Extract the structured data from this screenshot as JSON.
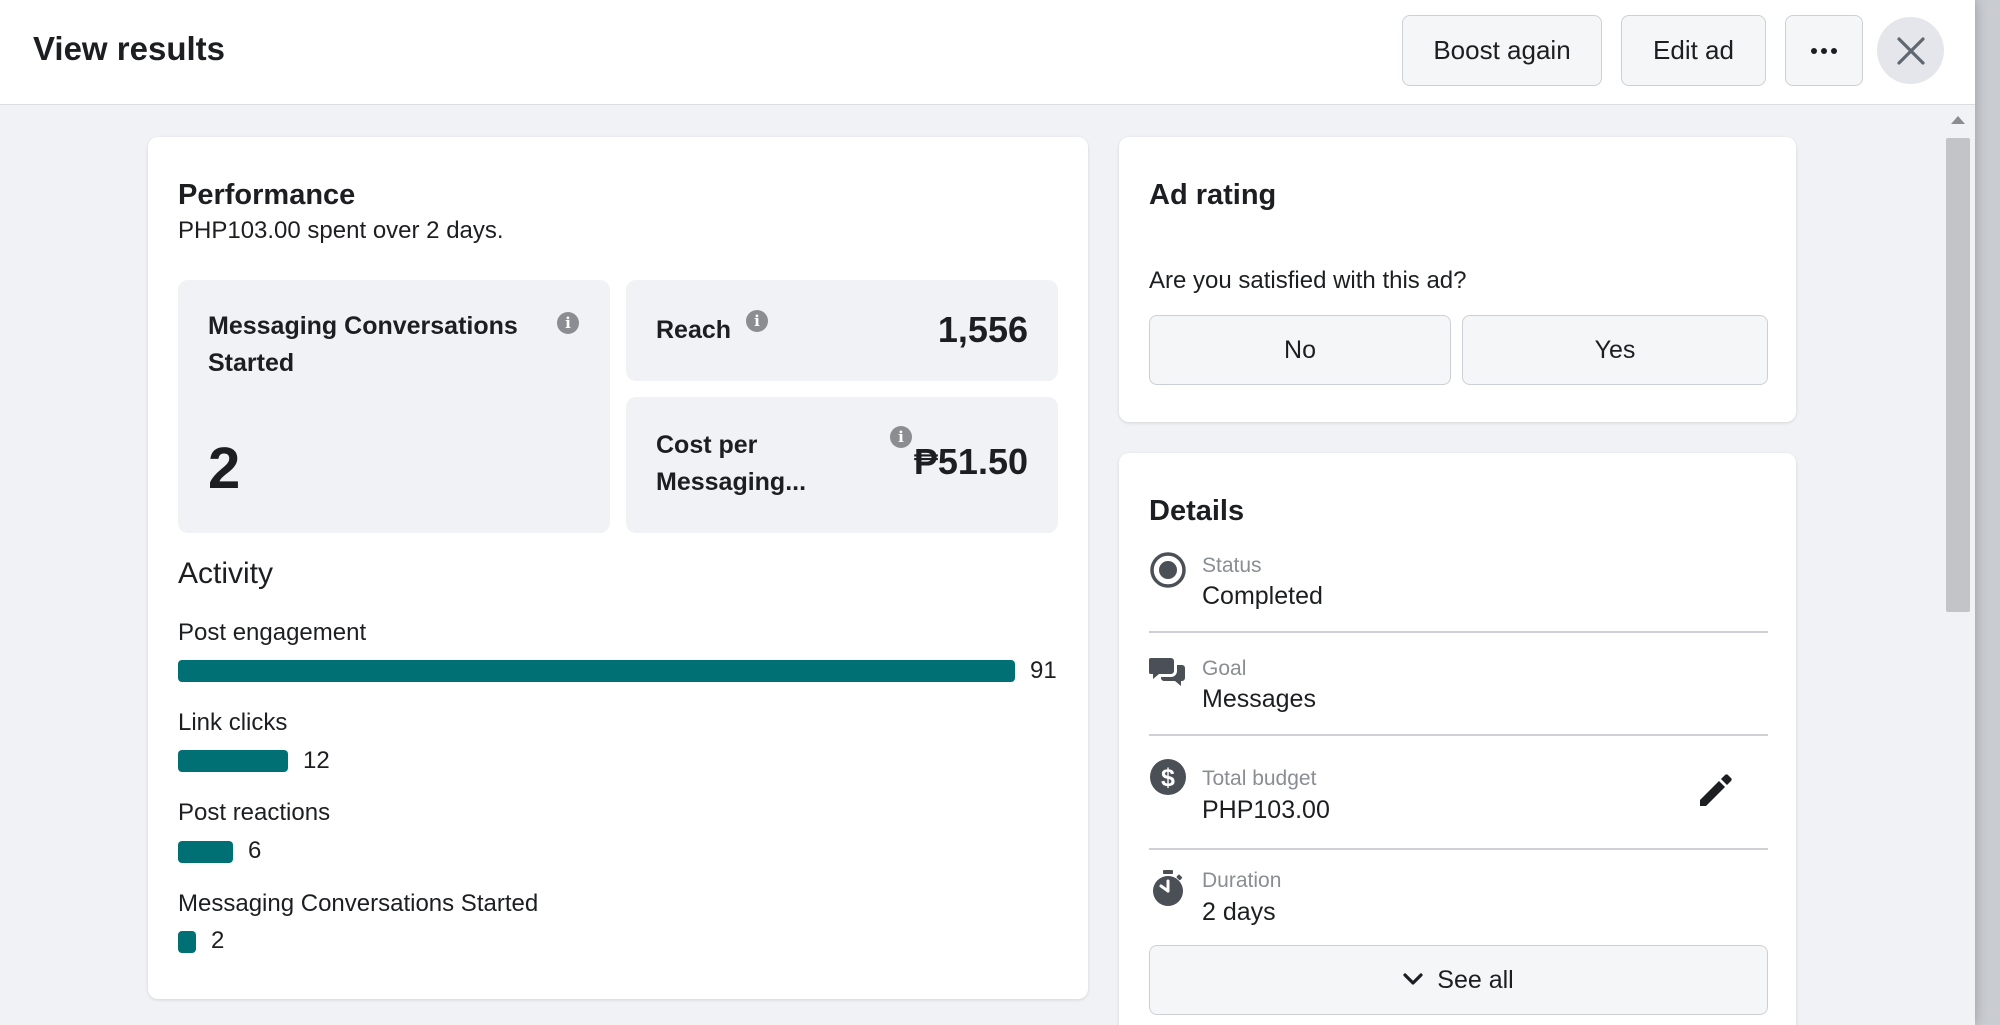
{
  "header": {
    "title": "View results",
    "boost_again_label": "Boost again",
    "edit_ad_label": "Edit ad",
    "more_icon": "more-dots-icon",
    "close_icon": "close-icon"
  },
  "performance": {
    "title": "Performance",
    "spent_amount": "PHP103.00",
    "spent_mid": " spent over ",
    "spent_days": "2 days.",
    "metrics": {
      "conversations": {
        "label": "Messaging Conversations Started",
        "value": "2"
      },
      "reach": {
        "label": "Reach",
        "value": "1,556"
      },
      "cost": {
        "label": "Cost per Messaging...",
        "value": "₱51.50"
      }
    },
    "activity_title": "Activity",
    "activity": [
      {
        "label": "Post engagement",
        "value": 91
      },
      {
        "label": "Link clicks",
        "value": 12
      },
      {
        "label": "Post reactions",
        "value": 6
      },
      {
        "label": "Messaging Conversations Started",
        "value": 2
      }
    ],
    "activity_max": 91
  },
  "rating": {
    "title": "Ad rating",
    "question": "Are you satisfied with this ad?",
    "no_label": "No",
    "yes_label": "Yes"
  },
  "details": {
    "title": "Details",
    "rows": [
      {
        "label": "Status",
        "value": "Completed",
        "icon": "status-radio-icon"
      },
      {
        "label": "Goal",
        "value": "Messages",
        "icon": "chat-bubbles-icon"
      },
      {
        "label": "Total budget",
        "value": "PHP103.00",
        "icon": "dollar-icon"
      },
      {
        "label": "Duration",
        "value": "2 days",
        "icon": "stopwatch-icon"
      }
    ],
    "see_all_label": "See all"
  },
  "colors": {
    "accent_bar": "#007074",
    "background": "#f0f2f5"
  }
}
